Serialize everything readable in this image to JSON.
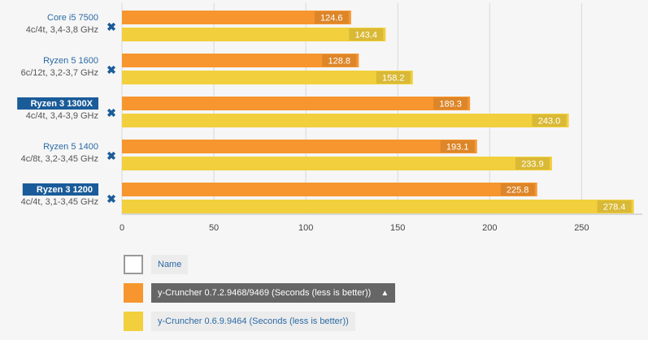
{
  "chart_data": {
    "type": "bar",
    "orientation": "horizontal",
    "categories": [
      {
        "name": "Core i5 7500",
        "spec": "4c/4t, 3,4-3,8 GHz",
        "highlight": false
      },
      {
        "name": "Ryzen 5 1600",
        "spec": "6c/12t, 3,2-3,7 GHz",
        "highlight": false
      },
      {
        "name": "Ryzen 3 1300X",
        "spec": "4c/4t, 3,4-3,9 GHz",
        "highlight": true
      },
      {
        "name": "Ryzen 5 1400",
        "spec": "4c/8t, 3,2-3,45 GHz",
        "highlight": false
      },
      {
        "name": "Ryzen 3 1200",
        "spec": "4c/4t, 3,1-3,45 GHz",
        "highlight": true
      }
    ],
    "series": [
      {
        "name": "y-Cruncher 0.7.2.9468/9469 (Seconds (less is better))",
        "color": "#f7962e",
        "values": [
          124.6,
          128.8,
          189.3,
          193.1,
          225.8
        ],
        "labels": [
          "124.6",
          "128.8",
          "189.3",
          "193.1",
          "225.8"
        ]
      },
      {
        "name": "y-Cruncher 0.6.9.9464 (Seconds (less is better))",
        "color": "#f2cf3c",
        "values": [
          143.4,
          158.2,
          243.0,
          233.9,
          278.4
        ],
        "labels": [
          "143.4",
          "158.2",
          "243.0",
          "233.9",
          "278.4"
        ]
      }
    ],
    "xlim": [
      0,
      283
    ],
    "xticks": [
      "0",
      "50",
      "100",
      "150",
      "200",
      "250"
    ],
    "tick_values": [
      0,
      50,
      100,
      150,
      200,
      250
    ],
    "grid": true,
    "legend_position": "bottom-left"
  },
  "legend": {
    "name_label": "Name",
    "series_labels": [
      "y-Cruncher 0.7.2.9468/9469 (Seconds (less is better))",
      "y-Cruncher 0.6.9.9464 (Seconds (less is better))"
    ],
    "active_index": 0,
    "sort_arrow": "▲"
  },
  "colors": {
    "highlight_bg": "#1a5c99",
    "grid": "#d8d8d8",
    "axis": "#bbbbbb",
    "remove_icon": "#1a5c99"
  },
  "icons": {
    "remove": "remove-icon",
    "sort": "sort-up-icon"
  }
}
